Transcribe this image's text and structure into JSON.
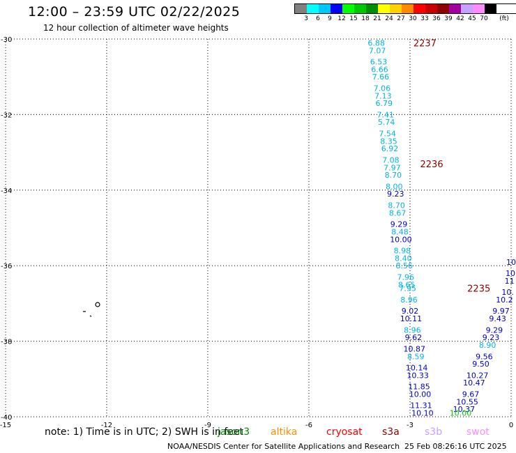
{
  "header": {
    "title": "12:00 – 23:59 UTC 02/22/2025",
    "subtitle": "12 hour collection of altimeter wave heights"
  },
  "legend": {
    "unit": "(ft)",
    "bins": [
      {
        "label": "3",
        "color": "#808080"
      },
      {
        "label": "6",
        "color": "#00ffff"
      },
      {
        "label": "9",
        "color": "#00c8ff"
      },
      {
        "label": "12",
        "color": "#0000ff"
      },
      {
        "label": "15",
        "color": "#00ff00"
      },
      {
        "label": "18",
        "color": "#00c800"
      },
      {
        "label": "21",
        "color": "#008c00"
      },
      {
        "label": "24",
        "color": "#ffff00"
      },
      {
        "label": "27",
        "color": "#ffd200"
      },
      {
        "label": "30",
        "color": "#ff8c00"
      },
      {
        "label": "33",
        "color": "#ff0000"
      },
      {
        "label": "36",
        "color": "#c80000"
      },
      {
        "label": "39",
        "color": "#8c0000"
      },
      {
        "label": "42",
        "color": "#a000a0"
      },
      {
        "label": "45",
        "color": "#c8a0ff"
      },
      {
        "label": "70",
        "color": "#ff8cff"
      },
      {
        "label": "",
        "color": "#000000"
      }
    ]
  },
  "map": {
    "lon_range": [
      -15,
      0
    ],
    "lat_range": [
      -40,
      -30
    ],
    "lon_ticks": [
      "-15",
      "-12",
      "-9",
      "-6",
      "-3",
      "0"
    ],
    "lat_ticks": [
      "-30",
      "-32",
      "-34",
      "-36",
      "-38",
      "-40"
    ],
    "grid": "dotted",
    "time_labels": [
      {
        "text": "2237",
        "lon": -2.9,
        "lat": -30.1
      },
      {
        "text": "2236",
        "lon": -2.7,
        "lat": -33.3
      },
      {
        "text": "2235",
        "lon": -1.3,
        "lat": -36.6
      }
    ],
    "tracks": [
      {
        "color": "#00b4e6",
        "points": [
          {
            "v": "6.88",
            "lon": -4.0,
            "lat": -30.1
          },
          {
            "v": "7.07",
            "lon": -3.97,
            "lat": -30.3
          },
          {
            "v": "6.53",
            "lon": -3.93,
            "lat": -30.6
          },
          {
            "v": "6.66",
            "lon": -3.9,
            "lat": -30.8
          },
          {
            "v": "7.66",
            "lon": -3.87,
            "lat": -31.0
          },
          {
            "v": "7.06",
            "lon": -3.83,
            "lat": -31.3
          },
          {
            "v": "7.13",
            "lon": -3.8,
            "lat": -31.5
          },
          {
            "v": "6.79",
            "lon": -3.77,
            "lat": -31.7
          },
          {
            "v": "7.41",
            "lon": -3.73,
            "lat": -32.0
          },
          {
            "v": "5.74",
            "lon": -3.7,
            "lat": -32.2
          },
          {
            "v": "7.54",
            "lon": -3.67,
            "lat": -32.5
          },
          {
            "v": "8.35",
            "lon": -3.63,
            "lat": -32.7
          },
          {
            "v": "6.92",
            "lon": -3.6,
            "lat": -32.9
          },
          {
            "v": "7.08",
            "lon": -3.57,
            "lat": -33.2
          },
          {
            "v": "7.97",
            "lon": -3.53,
            "lat": -33.4
          },
          {
            "v": "8.70",
            "lon": -3.5,
            "lat": -33.6
          },
          {
            "v": "8.00",
            "lon": -3.47,
            "lat": -33.9
          },
          {
            "v": "9.23",
            "lon": -3.43,
            "lat": -34.1,
            "c": "#0000cc"
          },
          {
            "v": "8.70",
            "lon": -3.4,
            "lat": -34.4
          },
          {
            "v": "8.67",
            "lon": -3.37,
            "lat": -34.6
          },
          {
            "v": "9.29",
            "lon": -3.33,
            "lat": -34.9,
            "c": "#0000cc"
          },
          {
            "v": "8.48",
            "lon": -3.3,
            "lat": -35.1
          },
          {
            "v": "10.00",
            "lon": -3.27,
            "lat": -35.3,
            "c": "#0000cc"
          },
          {
            "v": "8.98",
            "lon": -3.23,
            "lat": -35.6
          },
          {
            "v": "8.40",
            "lon": -3.2,
            "lat": -35.8
          },
          {
            "v": "8.56",
            "lon": -3.17,
            "lat": -36.0
          },
          {
            "v": "7.96",
            "lon": -3.13,
            "lat": -36.3
          },
          {
            "v": "8.65",
            "lon": -3.1,
            "lat": -36.5
          },
          {
            "v": "7.95",
            "lon": -3.07,
            "lat": -36.6
          },
          {
            "v": "8.96",
            "lon": -3.03,
            "lat": -36.9
          },
          {
            "v": "9.02",
            "lon": -3.0,
            "lat": -37.2,
            "c": "#0000cc"
          },
          {
            "v": "10.11",
            "lon": -2.97,
            "lat": -37.4,
            "c": "#0000cc"
          },
          {
            "v": "8.96",
            "lon": -2.93,
            "lat": -37.7
          },
          {
            "v": "9.62",
            "lon": -2.9,
            "lat": -37.9,
            "c": "#0000cc"
          },
          {
            "v": "10.87",
            "lon": -2.87,
            "lat": -38.2,
            "c": "#0000cc"
          },
          {
            "v": "8.59",
            "lon": -2.83,
            "lat": -38.4
          },
          {
            "v": "10.14",
            "lon": -2.8,
            "lat": -38.7,
            "c": "#0000cc"
          },
          {
            "v": "10.33",
            "lon": -2.77,
            "lat": -38.9,
            "c": "#0000cc"
          },
          {
            "v": "11.85",
            "lon": -2.73,
            "lat": -39.2,
            "c": "#0000cc"
          },
          {
            "v": "10.00",
            "lon": -2.7,
            "lat": -39.4,
            "c": "#0000cc"
          },
          {
            "v": "11.31",
            "lon": -2.67,
            "lat": -39.7,
            "c": "#0000cc"
          },
          {
            "v": "10.10",
            "lon": -2.63,
            "lat": -39.9,
            "c": "#0000cc"
          }
        ]
      },
      {
        "color": "#0000cc",
        "points": [
          {
            "v": "10",
            "lon": 0.0,
            "lat": -35.9
          },
          {
            "v": "10",
            "lon": -0.02,
            "lat": -36.2
          },
          {
            "v": "11",
            "lon": -0.05,
            "lat": -36.4
          },
          {
            "v": "10.",
            "lon": -0.1,
            "lat": -36.7
          },
          {
            "v": "10.2",
            "lon": -0.2,
            "lat": -36.9
          },
          {
            "v": "9.97",
            "lon": -0.3,
            "lat": -37.2
          },
          {
            "v": "9.43",
            "lon": -0.4,
            "lat": -37.4
          },
          {
            "v": "9.29",
            "lon": -0.5,
            "lat": -37.7
          },
          {
            "v": "9.23",
            "lon": -0.6,
            "lat": -37.9
          },
          {
            "v": "8.90",
            "lon": -0.7,
            "lat": -38.1,
            "c": "#00b4e6"
          },
          {
            "v": "9.56",
            "lon": -0.8,
            "lat": -38.4
          },
          {
            "v": "9.50",
            "lon": -0.9,
            "lat": -38.6
          },
          {
            "v": "10.27",
            "lon": -1.0,
            "lat": -38.9
          },
          {
            "v": "10.47",
            "lon": -1.1,
            "lat": -39.1
          },
          {
            "v": "9.67",
            "lon": -1.2,
            "lat": -39.4
          },
          {
            "v": "10.55",
            "lon": -1.3,
            "lat": -39.6
          },
          {
            "v": "10.37",
            "lon": -1.4,
            "lat": -39.8
          },
          {
            "v": "10.00",
            "lon": -1.5,
            "lat": -39.9,
            "c": "#00c800"
          }
        ]
      }
    ]
  },
  "footer": {
    "note": "note:  1) Time is in UTC;  2) SWH is in feet",
    "missions": [
      {
        "name": "jason3",
        "color": "#008c00"
      },
      {
        "name": "altika",
        "color": "#ff8c00"
      },
      {
        "name": "cryosat",
        "color": "#ff0000"
      },
      {
        "name": "s3a",
        "color": "#8c0000"
      },
      {
        "name": "s3b",
        "color": "#c8a0ff"
      },
      {
        "name": "swot",
        "color": "#ff8cff"
      }
    ],
    "credit": "NOAA/NESDIS Center for Satellite Applications and Research",
    "timestamp": "25 Feb 08:26:16 UTC 2025"
  }
}
